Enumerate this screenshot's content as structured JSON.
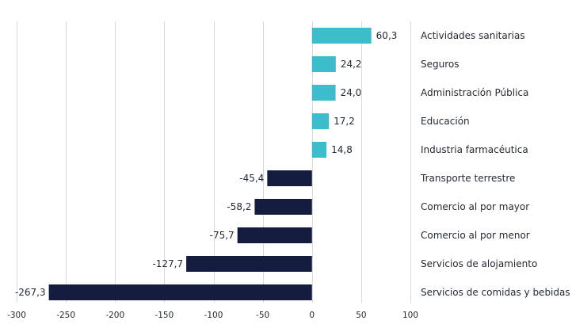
{
  "chart_data": {
    "type": "bar",
    "orientation": "horizontal",
    "categories": [
      "Actividades sanitarias",
      "Seguros",
      "Administración Pública",
      "Educación",
      "Industria farmacéutica",
      "Transporte terrestre",
      "Comercio al por mayor",
      "Comercio al por menor",
      "Servicios de alojamiento",
      "Servicios de comidas y bebidas"
    ],
    "values": [
      60.3,
      24.2,
      24.0,
      17.2,
      14.8,
      -45.4,
      -58.2,
      -75.7,
      -127.7,
      -267.3
    ],
    "value_labels": [
      "60,3",
      "24,2",
      "24,0",
      "17,2",
      "14,8",
      "-45,4",
      "-58,2",
      "-75,7",
      "-127,7",
      "-267,3"
    ],
    "xlim": [
      -300,
      100
    ],
    "xticks": [
      -300,
      -250,
      -200,
      -150,
      -100,
      -50,
      0,
      50,
      100
    ],
    "xtick_labels": [
      "-300",
      "-250",
      "-200",
      "-150",
      "-100",
      "-50",
      "0",
      "50",
      "100"
    ],
    "grid": "vertical",
    "colors": {
      "positive": "#3dbccc",
      "negative": "#141c40",
      "grid": "#d9d9d9",
      "text": "#222a35"
    }
  }
}
